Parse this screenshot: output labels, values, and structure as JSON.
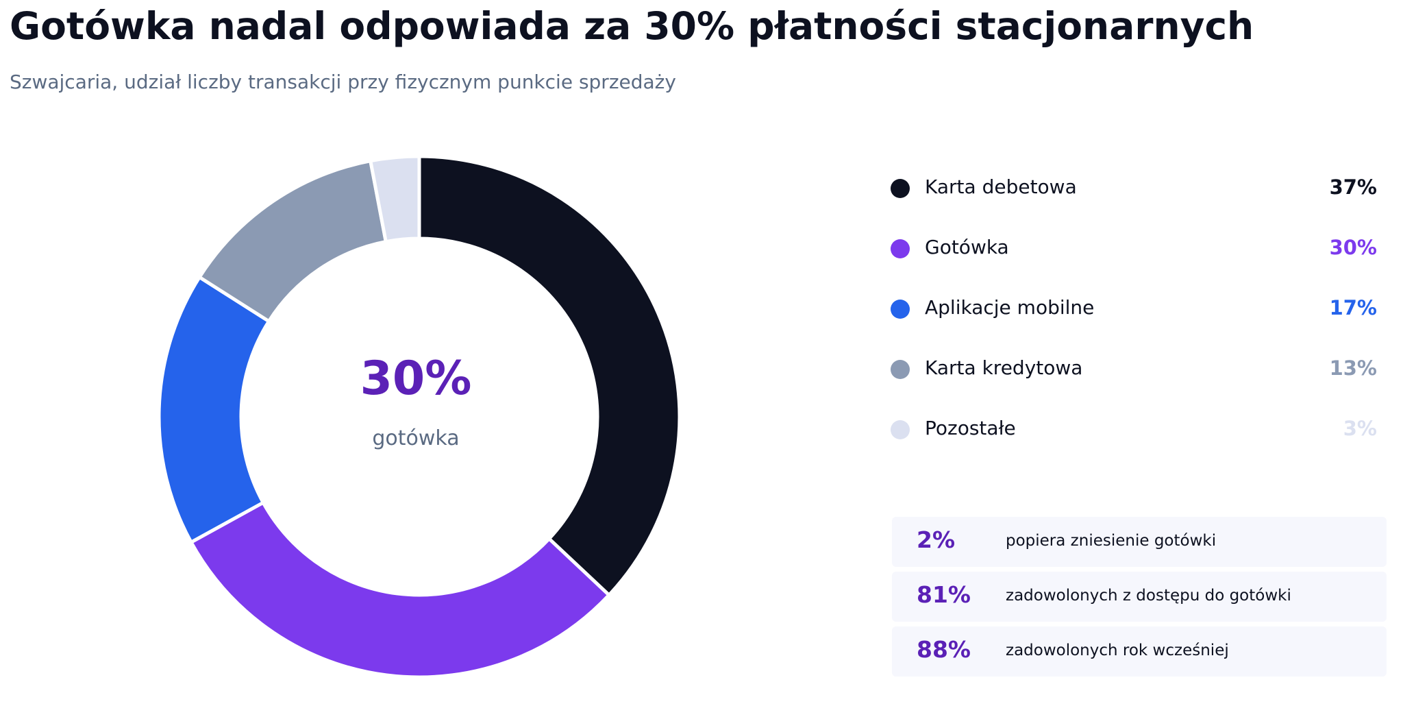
{
  "header": {
    "title": "Gotówka nadal odpowiada za 30% płatności stacjonarnych",
    "subtitle": "Szwajcaria, udział liczby transakcji przy fizycznym punkcie sprzedaży"
  },
  "center": {
    "value": "30%",
    "label": "gotówka"
  },
  "chart_data": {
    "type": "pie",
    "variant": "donut",
    "title": "Gotówka nadal odpowiada za 30% płatności stacjonarnych",
    "subtitle": "Szwajcaria, udział liczby transakcji przy fizycznym punkcie sprzedaży",
    "unit": "%",
    "legend_position": "right",
    "slices": [
      {
        "label": "Karta debetowa",
        "value": 37,
        "display": "37%",
        "color": "#0d1120"
      },
      {
        "label": "Gotówka",
        "value": 30,
        "display": "30%",
        "color": "#7c3aed"
      },
      {
        "label": "Aplikacje mobilne",
        "value": 17,
        "display": "17%",
        "color": "#2563eb"
      },
      {
        "label": "Karta kredytowa",
        "value": 13,
        "display": "13%",
        "color": "#8b9ab3"
      },
      {
        "label": "Pozostałe",
        "value": 3,
        "display": "3%",
        "color": "#dbe0f0"
      }
    ]
  },
  "stats": [
    {
      "value": "2%",
      "label": "popiera zniesienie gotówki"
    },
    {
      "value": "81%",
      "label": "zadowolonych z dostępu do gotówki"
    },
    {
      "value": "88%",
      "label": "zadowolonych rok wcześniej"
    }
  ],
  "colors": {
    "accent": "#5b21b6",
    "stat_background": "#f6f7fd",
    "muted_text": "#5a6a82"
  }
}
